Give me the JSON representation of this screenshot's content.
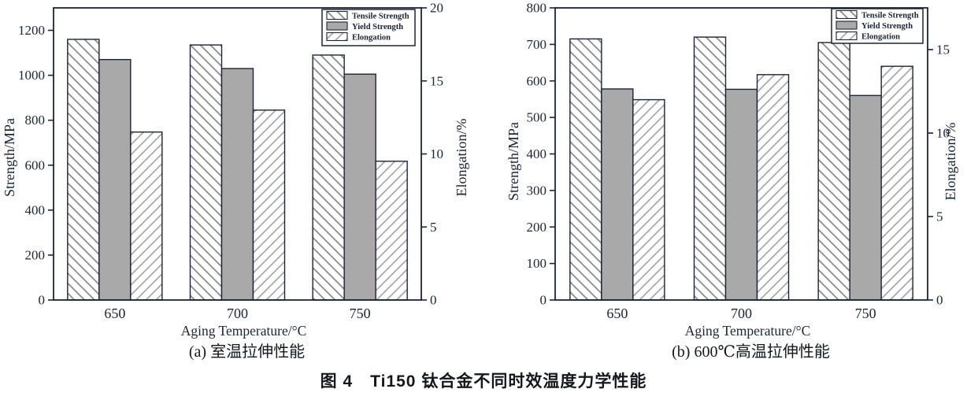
{
  "figure_caption": "图 4　Ti150 钛合金不同时效温度力学性能",
  "colors": {
    "ink": "#1b2533",
    "bar_gray": "#a9a9a9",
    "hatch_forward_line": "#7f7f7f",
    "hatch_backward_line": "#9b9b9b",
    "bar_background": "#ffffff"
  },
  "chart_data": [
    {
      "type": "bar",
      "panel_label": "(a) 室温拉伸性能",
      "xlabel": "Aging Temperature/°C",
      "categories": [
        "650",
        "700",
        "750"
      ],
      "series": [
        {
          "name": "Tensile Strength",
          "axis": "left",
          "style": "hatch-forward",
          "values": [
            1160,
            1135,
            1090
          ]
        },
        {
          "name": "Yield Strength",
          "axis": "left",
          "style": "solid-gray",
          "values": [
            1070,
            1030,
            1005
          ]
        },
        {
          "name": "Elongation",
          "axis": "right",
          "style": "hatch-backward",
          "values": [
            11.5,
            13,
            9.5
          ]
        }
      ],
      "left_axis": {
        "label": "Strength/MPa",
        "min": 0,
        "max": 1300,
        "ticks": [
          0,
          200,
          400,
          600,
          800,
          1000,
          1200
        ]
      },
      "right_axis": {
        "label": "Elongation/%",
        "min": 0,
        "max": 20,
        "ticks": [
          0,
          5,
          10,
          15,
          20
        ]
      },
      "legend_position": "top-right",
      "grid": "off"
    },
    {
      "type": "bar",
      "panel_label": "(b) 600℃高温拉伸性能",
      "xlabel": "Aging Temperature/°C",
      "categories": [
        "650",
        "700",
        "750"
      ],
      "series": [
        {
          "name": "Tensile Strength",
          "axis": "left",
          "style": "hatch-forward",
          "values": [
            715,
            720,
            705
          ]
        },
        {
          "name": "Yield Strength",
          "axis": "left",
          "style": "solid-gray",
          "values": [
            578,
            577,
            560
          ]
        },
        {
          "name": "Elongation",
          "axis": "right",
          "style": "hatch-backward",
          "values": [
            12,
            13.5,
            14
          ]
        }
      ],
      "left_axis": {
        "label": "Strength/MPa",
        "min": 0,
        "max": 800,
        "ticks": [
          0,
          100,
          200,
          300,
          400,
          500,
          600,
          700,
          800
        ]
      },
      "right_axis": {
        "label": "Elongation/%",
        "min": 0,
        "max": 17.5,
        "ticks": [
          0,
          5,
          10,
          15
        ]
      },
      "legend_position": "top-right",
      "grid": "off"
    }
  ]
}
